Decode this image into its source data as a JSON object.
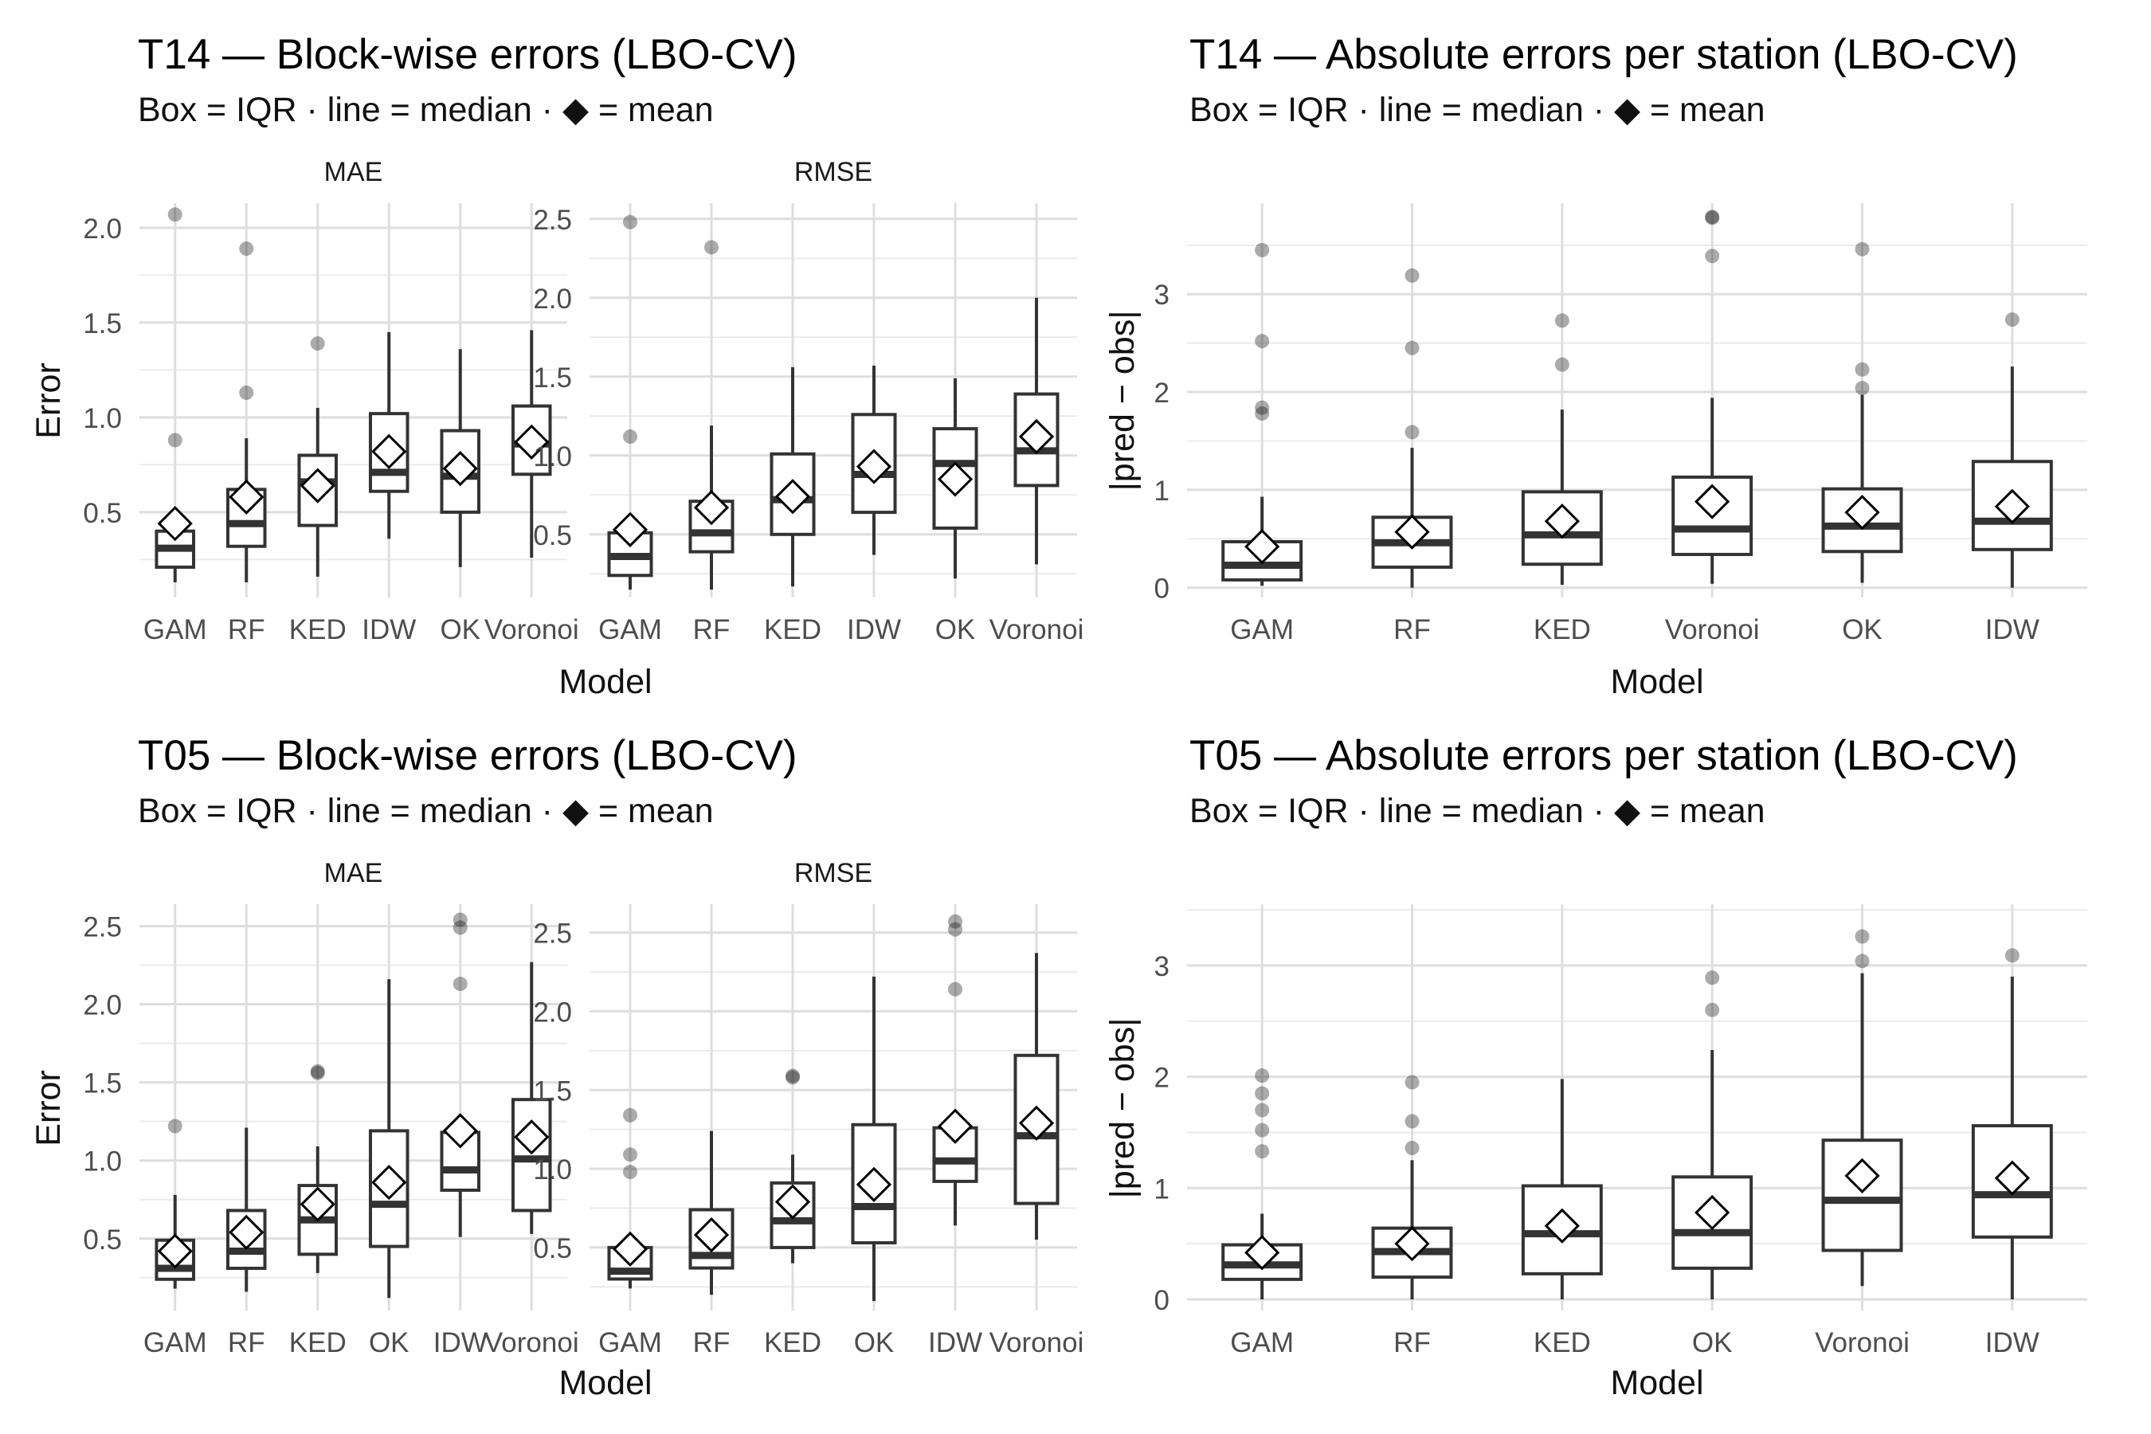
{
  "chart_data": [
    {
      "type": "boxplot",
      "title": "T14 — Block-wise errors (LBO-CV)",
      "subtitle": "Box = IQR · line = median · ◆ = mean",
      "xlabel": "Model",
      "ylabel": "Error",
      "facets": [
        {
          "label": "MAE",
          "ylim": [
            0.05,
            2.13
          ],
          "yticks": [
            0.5,
            1.0,
            1.5,
            2.0
          ],
          "ytick_labels": [
            "0.5",
            "1.0",
            "1.5",
            "2.0"
          ],
          "groups": [
            {
              "model": "GAM",
              "lower_whisker": 0.13,
              "q1": 0.21,
              "median": 0.31,
              "q3": 0.4,
              "upper_whisker": 0.42,
              "mean": 0.44,
              "outliers": [
                0.88,
                2.07
              ]
            },
            {
              "model": "RF",
              "lower_whisker": 0.13,
              "q1": 0.32,
              "median": 0.44,
              "q3": 0.62,
              "upper_whisker": 0.89,
              "mean": 0.58,
              "outliers": [
                1.13,
                1.89
              ]
            },
            {
              "model": "KED",
              "lower_whisker": 0.16,
              "q1": 0.43,
              "median": 0.66,
              "q3": 0.8,
              "upper_whisker": 1.05,
              "mean": 0.64,
              "outliers": [
                1.39
              ]
            },
            {
              "model": "IDW",
              "lower_whisker": 0.36,
              "q1": 0.61,
              "median": 0.71,
              "q3": 1.02,
              "upper_whisker": 1.45,
              "mean": 0.82,
              "outliers": []
            },
            {
              "model": "OK",
              "lower_whisker": 0.21,
              "q1": 0.5,
              "median": 0.69,
              "q3": 0.93,
              "upper_whisker": 1.36,
              "mean": 0.73,
              "outliers": []
            },
            {
              "model": "Voronoi",
              "lower_whisker": 0.26,
              "q1": 0.7,
              "median": 0.86,
              "q3": 1.06,
              "upper_whisker": 1.46,
              "mean": 0.87,
              "outliers": []
            }
          ]
        },
        {
          "label": "RMSE",
          "ylim": [
            0.1,
            2.6
          ],
          "yticks": [
            0.5,
            1.0,
            1.5,
            2.0,
            2.5
          ],
          "ytick_labels": [
            "0.5",
            "1.0",
            "1.5",
            "2.0",
            "2.5"
          ],
          "groups": [
            {
              "model": "GAM",
              "lower_whisker": 0.15,
              "q1": 0.24,
              "median": 0.36,
              "q3": 0.51,
              "upper_whisker": 0.52,
              "mean": 0.53,
              "outliers": [
                1.12,
                2.48
              ]
            },
            {
              "model": "RF",
              "lower_whisker": 0.15,
              "q1": 0.39,
              "median": 0.51,
              "q3": 0.71,
              "upper_whisker": 1.19,
              "mean": 0.67,
              "outliers": [
                2.32
              ]
            },
            {
              "model": "KED",
              "lower_whisker": 0.17,
              "q1": 0.5,
              "median": 0.72,
              "q3": 1.01,
              "upper_whisker": 1.56,
              "mean": 0.74,
              "outliers": []
            },
            {
              "model": "IDW",
              "lower_whisker": 0.37,
              "q1": 0.64,
              "median": 0.88,
              "q3": 1.26,
              "upper_whisker": 1.57,
              "mean": 0.93,
              "outliers": []
            },
            {
              "model": "OK",
              "lower_whisker": 0.22,
              "q1": 0.54,
              "median": 0.95,
              "q3": 1.17,
              "upper_whisker": 1.49,
              "mean": 0.85,
              "outliers": []
            },
            {
              "model": "Voronoi",
              "lower_whisker": 0.31,
              "q1": 0.81,
              "median": 1.03,
              "q3": 1.39,
              "upper_whisker": 2.0,
              "mean": 1.12,
              "outliers": []
            }
          ]
        }
      ]
    },
    {
      "type": "boxplot",
      "title": "T14 — Absolute errors per station (LBO-CV)",
      "subtitle": "Box = IQR · line = median · ◆ = mean",
      "xlabel": "Model",
      "ylabel": "|pred − obs|",
      "facets": [
        {
          "label": "",
          "ylim": [
            -0.1,
            3.93
          ],
          "yticks": [
            0,
            1,
            2,
            3
          ],
          "ytick_labels": [
            "0",
            "1",
            "2",
            "3"
          ],
          "groups": [
            {
              "model": "GAM",
              "lower_whisker": 0.02,
              "q1": 0.08,
              "median": 0.23,
              "q3": 0.47,
              "upper_whisker": 0.93,
              "mean": 0.42,
              "outliers": [
                1.78,
                1.84,
                2.52,
                3.45
              ]
            },
            {
              "model": "RF",
              "lower_whisker": 0.0,
              "q1": 0.21,
              "median": 0.46,
              "q3": 0.72,
              "upper_whisker": 1.43,
              "mean": 0.57,
              "outliers": [
                1.59,
                2.45,
                3.19
              ]
            },
            {
              "model": "KED",
              "lower_whisker": 0.03,
              "q1": 0.24,
              "median": 0.54,
              "q3": 0.98,
              "upper_whisker": 1.82,
              "mean": 0.68,
              "outliers": [
                2.28,
                2.73
              ]
            },
            {
              "model": "Voronoi",
              "lower_whisker": 0.04,
              "q1": 0.34,
              "median": 0.6,
              "q3": 1.13,
              "upper_whisker": 1.94,
              "mean": 0.88,
              "outliers": [
                3.39,
                3.78,
                3.79
              ]
            },
            {
              "model": "OK",
              "lower_whisker": 0.05,
              "q1": 0.37,
              "median": 0.63,
              "q3": 1.01,
              "upper_whisker": 1.97,
              "mean": 0.77,
              "outliers": [
                2.04,
                2.23,
                3.46
              ]
            },
            {
              "model": "IDW",
              "lower_whisker": 0.0,
              "q1": 0.39,
              "median": 0.68,
              "q3": 1.29,
              "upper_whisker": 2.26,
              "mean": 0.83,
              "outliers": [
                2.74
              ]
            }
          ]
        }
      ]
    },
    {
      "type": "boxplot",
      "title": "T05 — Block-wise errors (LBO-CV)",
      "subtitle": "Box = IQR · line = median · ◆ = mean",
      "xlabel": "Model",
      "ylabel": "Error",
      "facets": [
        {
          "label": "MAE",
          "ylim": [
            0.04,
            2.64
          ],
          "yticks": [
            0.5,
            1.0,
            1.5,
            2.0,
            2.5
          ],
          "ytick_labels": [
            "0.5",
            "1.0",
            "1.5",
            "2.0",
            "2.5"
          ],
          "groups": [
            {
              "model": "GAM",
              "lower_whisker": 0.18,
              "q1": 0.24,
              "median": 0.31,
              "q3": 0.49,
              "upper_whisker": 0.78,
              "mean": 0.42,
              "outliers": [
                1.22
              ]
            },
            {
              "model": "RF",
              "lower_whisker": 0.16,
              "q1": 0.31,
              "median": 0.42,
              "q3": 0.68,
              "upper_whisker": 1.21,
              "mean": 0.54,
              "outliers": []
            },
            {
              "model": "KED",
              "lower_whisker": 0.28,
              "q1": 0.4,
              "median": 0.62,
              "q3": 0.84,
              "upper_whisker": 1.09,
              "mean": 0.72,
              "outliers": [
                1.56,
                1.57
              ]
            },
            {
              "model": "OK",
              "lower_whisker": 0.12,
              "q1": 0.45,
              "median": 0.72,
              "q3": 1.19,
              "upper_whisker": 2.16,
              "mean": 0.86,
              "outliers": []
            },
            {
              "model": "IDW",
              "lower_whisker": 0.51,
              "q1": 0.81,
              "median": 0.94,
              "q3": 1.18,
              "upper_whisker": 1.19,
              "mean": 1.19,
              "outliers": [
                2.13,
                2.49,
                2.54
              ]
            },
            {
              "model": "Voronoi",
              "lower_whisker": 0.53,
              "q1": 0.68,
              "median": 1.01,
              "q3": 1.39,
              "upper_whisker": 2.27,
              "mean": 1.15,
              "outliers": []
            }
          ]
        },
        {
          "label": "RMSE",
          "ylim": [
            0.1,
            2.68
          ],
          "yticks": [
            0.5,
            1.0,
            1.5,
            2.0,
            2.5
          ],
          "ytick_labels": [
            "0.5",
            "1.0",
            "1.5",
            "2.0",
            "2.5"
          ],
          "groups": [
            {
              "model": "GAM",
              "lower_whisker": 0.24,
              "q1": 0.3,
              "median": 0.35,
              "q3": 0.5,
              "upper_whisker": 0.51,
              "mean": 0.49,
              "outliers": [
                0.98,
                1.09,
                1.34
              ]
            },
            {
              "model": "RF",
              "lower_whisker": 0.2,
              "q1": 0.37,
              "median": 0.45,
              "q3": 0.74,
              "upper_whisker": 1.24,
              "mean": 0.58,
              "outliers": []
            },
            {
              "model": "KED",
              "lower_whisker": 0.4,
              "q1": 0.5,
              "median": 0.67,
              "q3": 0.91,
              "upper_whisker": 1.09,
              "mean": 0.79,
              "outliers": [
                1.58,
                1.59
              ]
            },
            {
              "model": "OK",
              "lower_whisker": 0.16,
              "q1": 0.53,
              "median": 0.76,
              "q3": 1.28,
              "upper_whisker": 2.22,
              "mean": 0.9,
              "outliers": []
            },
            {
              "model": "IDW",
              "lower_whisker": 0.64,
              "q1": 0.92,
              "median": 1.05,
              "q3": 1.26,
              "upper_whisker": 1.27,
              "mean": 1.27,
              "outliers": [
                2.14,
                2.52,
                2.57
              ]
            },
            {
              "model": "Voronoi",
              "lower_whisker": 0.55,
              "q1": 0.78,
              "median": 1.21,
              "q3": 1.72,
              "upper_whisker": 2.37,
              "mean": 1.29,
              "outliers": []
            }
          ]
        }
      ]
    },
    {
      "type": "boxplot",
      "title": "T05 — Absolute errors per station (LBO-CV)",
      "subtitle": "Box = IQR · line = median · ◆ = mean",
      "xlabel": "Model",
      "ylabel": "|pred − obs|",
      "facets": [
        {
          "label": "",
          "ylim": [
            -0.1,
            3.55
          ],
          "yticks": [
            0,
            1,
            2,
            3
          ],
          "ytick_labels": [
            "0",
            "1",
            "2",
            "3"
          ],
          "groups": [
            {
              "model": "GAM",
              "lower_whisker": 0.0,
              "q1": 0.18,
              "median": 0.31,
              "q3": 0.49,
              "upper_whisker": 0.77,
              "mean": 0.42,
              "outliers": [
                1.33,
                1.52,
                1.7,
                1.85,
                2.01
              ]
            },
            {
              "model": "RF",
              "lower_whisker": 0.0,
              "q1": 0.2,
              "median": 0.43,
              "q3": 0.64,
              "upper_whisker": 1.25,
              "mean": 0.5,
              "outliers": [
                1.36,
                1.6,
                1.95
              ]
            },
            {
              "model": "KED",
              "lower_whisker": 0.0,
              "q1": 0.23,
              "median": 0.59,
              "q3": 1.02,
              "upper_whisker": 1.98,
              "mean": 0.66,
              "outliers": []
            },
            {
              "model": "OK",
              "lower_whisker": 0.0,
              "q1": 0.28,
              "median": 0.6,
              "q3": 1.1,
              "upper_whisker": 2.24,
              "mean": 0.78,
              "outliers": [
                2.6,
                2.89
              ]
            },
            {
              "model": "Voronoi",
              "lower_whisker": 0.12,
              "q1": 0.44,
              "median": 0.89,
              "q3": 1.43,
              "upper_whisker": 2.93,
              "mean": 1.11,
              "outliers": [
                3.04,
                3.26
              ]
            },
            {
              "model": "IDW",
              "lower_whisker": 0.0,
              "q1": 0.56,
              "median": 0.94,
              "q3": 1.56,
              "upper_whisker": 2.9,
              "mean": 1.09,
              "outliers": [
                3.09
              ]
            }
          ]
        }
      ]
    }
  ]
}
